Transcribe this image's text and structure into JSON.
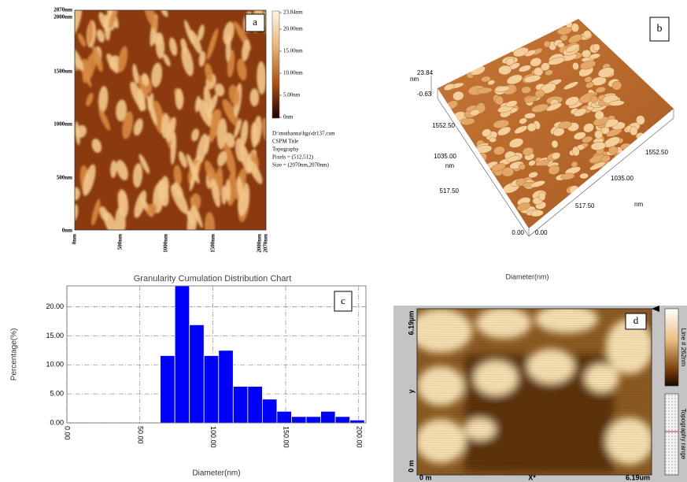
{
  "panels": {
    "a": {
      "label": "a",
      "y_ticks": [
        "2070nm",
        "2000nm",
        "1500nm",
        "1000nm",
        "500nm",
        "0nm"
      ],
      "x_ticks": [
        "0nm",
        "500nm",
        "1000nm",
        "1500nm",
        "2000nm",
        "2070nm"
      ],
      "colorbar_ticks": [
        "23.84nm",
        "20.00nm",
        "15.00nm",
        "10.00nm",
        "5.00nm",
        "0nm"
      ],
      "info": [
        "D:\\muthanna\\hgs\\dr137.csm",
        "CSPM Title",
        "Topography",
        "Pixels = (512,512)",
        "Size = (2070nm,2070nm)"
      ]
    },
    "b": {
      "label": "b",
      "z_labels": [
        "nm",
        "23.84",
        "-0.63"
      ],
      "y_labels": [
        "1552.50",
        "1035.00",
        "nm",
        "517.50",
        "0.00"
      ],
      "x_labels": [
        "0.00",
        "517.50",
        "1035.00",
        "1552.50",
        "nm"
      ],
      "caption": "Diameter(nm)"
    },
    "c": {
      "label": "c"
    },
    "d": {
      "label": "d",
      "y_labels": [
        "6.19µm",
        "y",
        "0 m"
      ],
      "x_labels": [
        "0 m",
        "X*",
        "6.19um"
      ],
      "colorbar_labels": [
        "Line # 262nm",
        "Topography range"
      ]
    }
  },
  "chart_data": {
    "type": "histogram",
    "title": "Granularity Cumulation Distribution  Chart",
    "x_label": "Diameter(nm)",
    "y_label": "Percentage(%)",
    "color": "#0000ff",
    "bins": [
      64,
      74,
      84,
      94,
      104,
      114,
      124,
      134,
      144,
      154,
      164,
      174,
      184,
      194,
      204
    ],
    "values": [
      11.6,
      23.6,
      16.9,
      11.6,
      12.5,
      6.3,
      6.3,
      4.1,
      2.0,
      1.1,
      1.1,
      2.0,
      1.1,
      0.5
    ],
    "xlim": [
      0,
      205
    ],
    "ylim": [
      0,
      23.6
    ],
    "xticks": [
      {
        "value": 0,
        "label": "0.00"
      },
      {
        "value": 50,
        "label": "50.00"
      },
      {
        "value": 100,
        "label": "100.00"
      },
      {
        "value": 150,
        "label": "150.00"
      },
      {
        "value": 200,
        "label": "200.00"
      }
    ],
    "yticks": [
      {
        "value": 0,
        "label": "0.00"
      },
      {
        "value": 5,
        "label": "5.00"
      },
      {
        "value": 10,
        "label": "10.00"
      },
      {
        "value": 15,
        "label": "15.00"
      },
      {
        "value": 20,
        "label": "20.00"
      }
    ],
    "grid": true
  }
}
